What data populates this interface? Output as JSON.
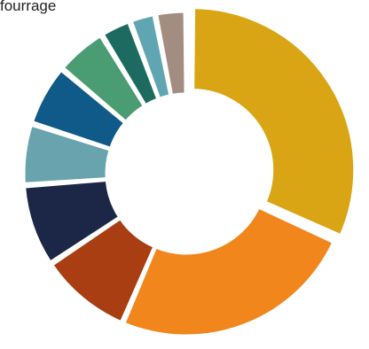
{
  "chart_data": {
    "type": "pie",
    "donut": true,
    "visible_label": "fourrage",
    "slices": [
      {
        "value": 31,
        "color": "#D9A514"
      },
      {
        "value": 24,
        "color": "#F0861C"
      },
      {
        "value": 9,
        "color": "#A83E12"
      },
      {
        "value": 8,
        "color": "#1C2646"
      },
      {
        "value": 6,
        "color": "#68A3AE"
      },
      {
        "value": 6,
        "color": "#0F5A88"
      },
      {
        "value": 5,
        "color": "#4A9C72"
      },
      {
        "value": 3,
        "color": "#1D6B60"
      },
      {
        "value": 2.5,
        "color": "#60A5B2"
      },
      {
        "value": 3,
        "color": "#A38D80"
      }
    ]
  }
}
